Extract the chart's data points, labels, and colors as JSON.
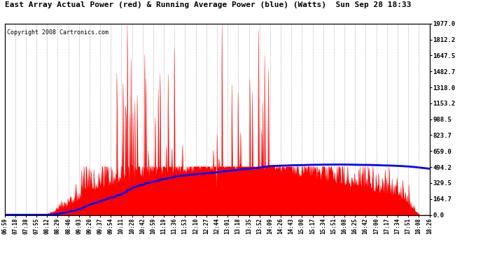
{
  "title": "East Array Actual Power (red) & Running Average Power (blue) (Watts)  Sun Sep 28 18:33",
  "copyright": "Copyright 2008 Cartronics.com",
  "background_color": "#ffffff",
  "plot_bg_color": "#ffffff",
  "grid_color": "#aaaaaa",
  "y_ticks": [
    0.0,
    164.7,
    329.5,
    494.2,
    659.0,
    823.7,
    988.5,
    1153.2,
    1318.0,
    1482.7,
    1647.5,
    1812.2,
    1977.0
  ],
  "x_labels": [
    "06:59",
    "07:18",
    "07:38",
    "07:55",
    "08:12",
    "08:29",
    "08:46",
    "09:03",
    "09:20",
    "09:37",
    "09:54",
    "10:11",
    "10:28",
    "10:42",
    "10:59",
    "11:19",
    "11:36",
    "11:53",
    "12:10",
    "12:27",
    "12:44",
    "13:01",
    "13:18",
    "13:35",
    "13:52",
    "14:09",
    "14:26",
    "14:43",
    "15:00",
    "15:17",
    "15:34",
    "15:51",
    "16:08",
    "16:25",
    "16:42",
    "17:00",
    "17:17",
    "17:34",
    "17:51",
    "18:08",
    "18:26"
  ],
  "actual_color": "#ff0000",
  "avg_color": "#0000ff",
  "ymax": 1977.0,
  "ymin": 0.0
}
